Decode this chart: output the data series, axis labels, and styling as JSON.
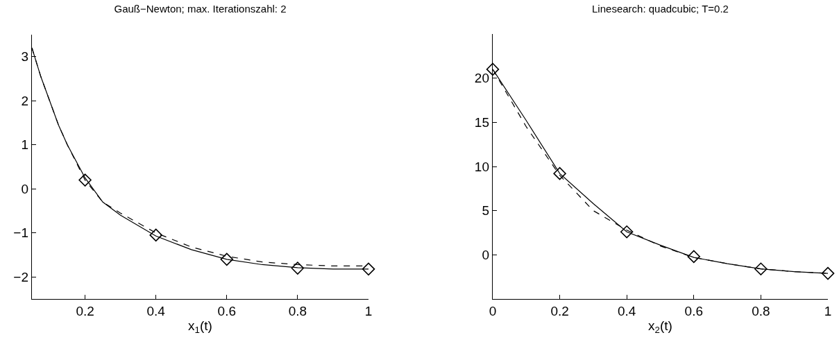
{
  "chart_data": [
    {
      "type": "line",
      "title": "Gauß−Newton; max. Iterationszahl: 2",
      "xlabel": "x$_{1}$(t)",
      "xlim": [
        0.05,
        1
      ],
      "ylim": [
        -2.5,
        3.5
      ],
      "xticks": [
        0.2,
        0.4,
        0.6,
        0.8,
        1
      ],
      "yticks": [
        -2,
        -1,
        0,
        1,
        2,
        3
      ],
      "series": [
        {
          "type": "line",
          "color": "#000000",
          "line_style": "solid",
          "marker": "none",
          "x": [
            0.05,
            0.075,
            0.1,
            0.125,
            0.15,
            0.2,
            0.25,
            0.3,
            0.4,
            0.5,
            0.6,
            0.7,
            0.8,
            0.9,
            1
          ],
          "values": [
            3.2,
            2.55,
            2.0,
            1.45,
            1.0,
            0.25,
            -0.3,
            -0.6,
            -1.07,
            -1.38,
            -1.6,
            -1.72,
            -1.79,
            -1.82,
            -1.82
          ]
        },
        {
          "type": "line",
          "color": "#000000",
          "line_style": "dashed",
          "marker": "none",
          "x": [
            0.05,
            0.075,
            0.1,
            0.125,
            0.15,
            0.2,
            0.25,
            0.3,
            0.4,
            0.5,
            0.6,
            0.7,
            0.8,
            0.9,
            1
          ],
          "values": [
            3.2,
            2.55,
            2.0,
            1.45,
            1.0,
            0.2,
            -0.3,
            -0.55,
            -1.0,
            -1.32,
            -1.53,
            -1.66,
            -1.72,
            -1.75,
            -1.75
          ]
        },
        {
          "type": "scatter",
          "color": "#000000",
          "marker": "diamond",
          "x": [
            0.2,
            0.4,
            0.6,
            0.8,
            1
          ],
          "values": [
            0.2,
            -1.05,
            -1.6,
            -1.8,
            -1.82
          ]
        }
      ]
    },
    {
      "type": "line",
      "title": "Linesearch: quadcubic; T=0.2",
      "xlabel": "x$_{2}$(t)",
      "xlim": [
        0,
        1
      ],
      "ylim": [
        -5,
        25
      ],
      "xticks": [
        0,
        0.2,
        0.4,
        0.6,
        0.8,
        1
      ],
      "yticks": [
        0,
        5,
        10,
        15,
        20
      ],
      "series": [
        {
          "type": "line",
          "color": "#000000",
          "line_style": "solid",
          "marker": "none",
          "x": [
            0,
            0.1,
            0.2,
            0.3,
            0.4,
            0.5,
            0.6,
            0.7,
            0.8,
            0.9,
            1
          ],
          "values": [
            21,
            15.2,
            9.2,
            5.8,
            2.6,
            1.1,
            -0.3,
            -1.0,
            -1.6,
            -1.9,
            -2.1
          ]
        },
        {
          "type": "line",
          "color": "#000000",
          "line_style": "dashed",
          "marker": "none",
          "x": [
            0,
            0.1,
            0.2,
            0.3,
            0.4,
            0.5,
            0.6,
            0.7,
            0.8,
            0.9,
            1
          ],
          "values": [
            21,
            14.5,
            9.0,
            5.0,
            2.8,
            1.0,
            -0.3,
            -1.0,
            -1.6,
            -1.9,
            -2.1
          ]
        },
        {
          "type": "scatter",
          "color": "#000000",
          "marker": "diamond",
          "x": [
            0,
            0.2,
            0.4,
            0.6,
            0.8,
            1
          ],
          "values": [
            21,
            9.2,
            2.6,
            -0.2,
            -1.6,
            -2.1
          ]
        }
      ]
    }
  ]
}
